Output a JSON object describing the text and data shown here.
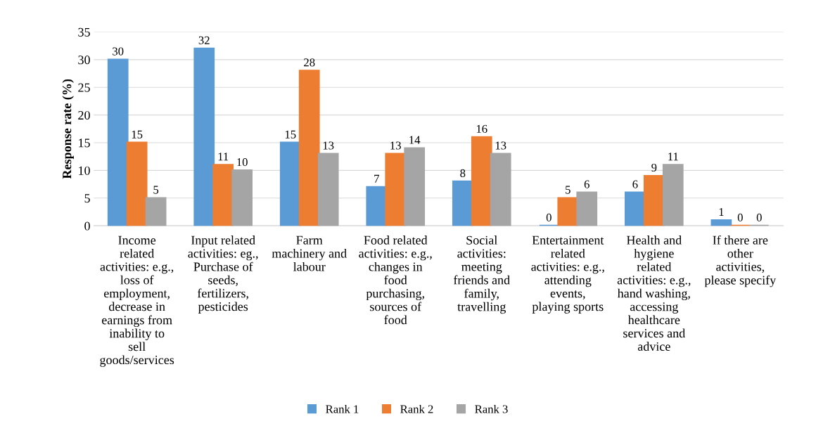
{
  "chart_data": {
    "type": "bar",
    "ylabel": "Response rate (%)",
    "categories": [
      "Income\nrelated\nactivities: e.g.,\nloss of\nemployment,\ndecrease in\nearnings from\ninability to\nsell\ngoods/services",
      "Input related\nactivities: eg.,\nPurchase of\nseeds,\nfertilizers,\npesticides",
      "Farm\nmachinery and\nlabour",
      "Food related\nactivities: e.g.,\nchanges in\nfood\npurchasing,\nsources of\nfood",
      "Social\nactivities:\nmeeting\nfriends and\nfamily,\ntravelling",
      "Entertainment\nrelated\nactivities: e.g.,\nattending\nevents,\nplaying sports",
      "Health and\nhygiene\nrelated\nactivities: e.g.,\nhand washing,\naccessing\nhealthcare\nservices and\nadvice",
      "If there are\nother\nactivities,\nplease specify"
    ],
    "series": [
      {
        "name": "Rank 1",
        "color": "#5b9bd5",
        "values": [
          30,
          32,
          15,
          7,
          8,
          0,
          6,
          1
        ]
      },
      {
        "name": "Rank 2",
        "color": "#ed7d31",
        "values": [
          15,
          11,
          28,
          13,
          16,
          5,
          9,
          0
        ]
      },
      {
        "name": "Rank 3",
        "color": "#a5a5a5",
        "values": [
          5,
          10,
          13,
          14,
          13,
          6,
          11,
          0
        ]
      }
    ],
    "ylim": [
      0,
      35
    ],
    "yticks": [
      0,
      5,
      10,
      15,
      20,
      25,
      30,
      35
    ],
    "grid": "y",
    "legend": "bottom",
    "data_labels": true
  }
}
